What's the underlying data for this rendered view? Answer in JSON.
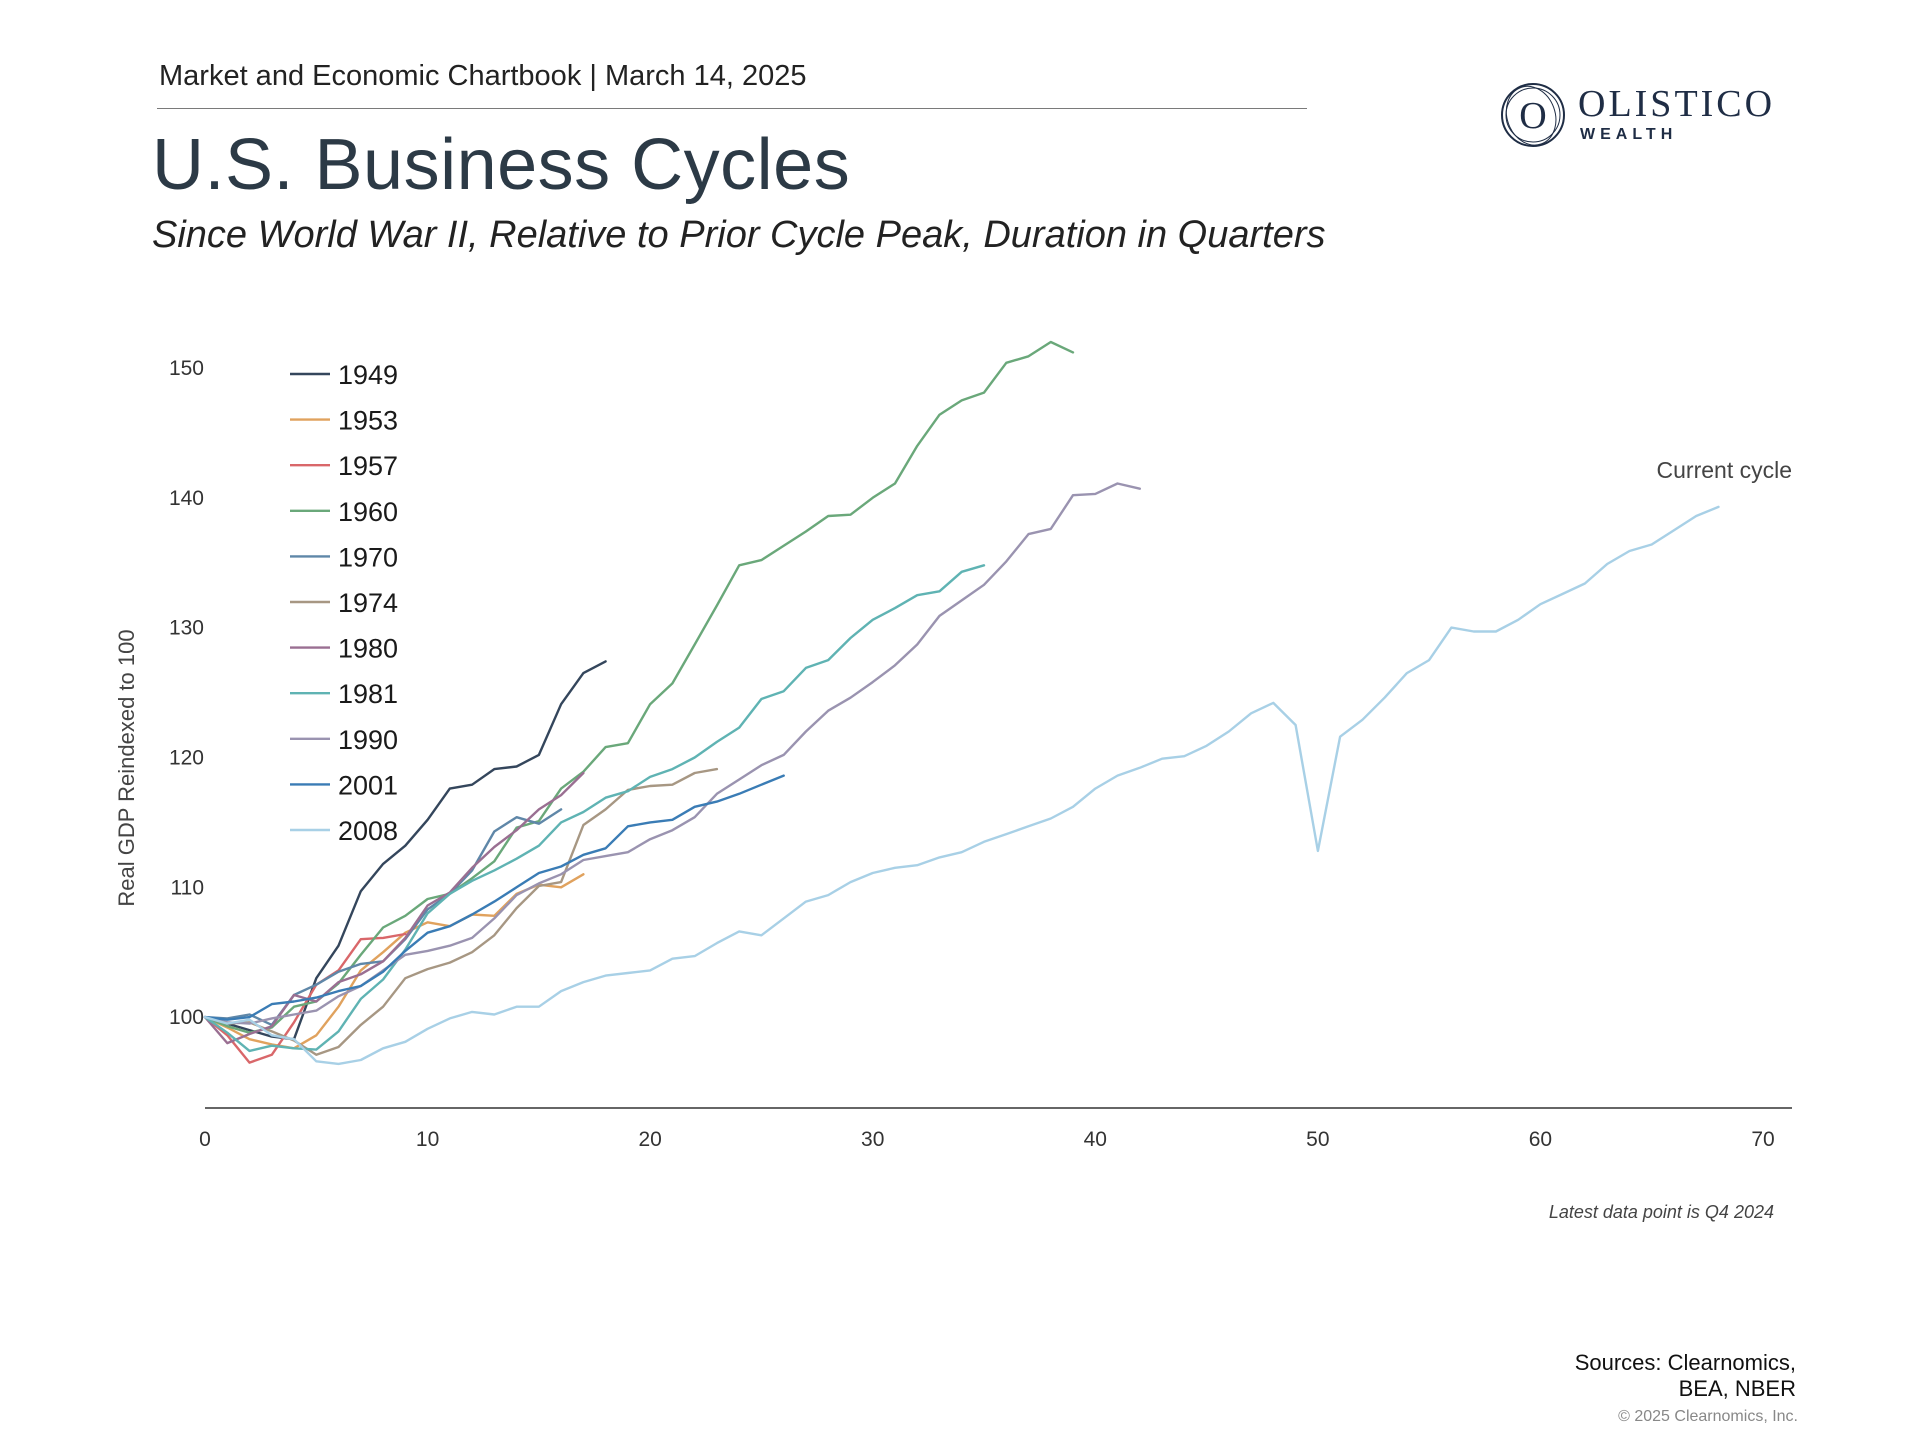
{
  "header": {
    "text": "Market and Economic Chartbook | March 14, 2025",
    "title": "U.S. Business Cycles",
    "subtitle": "Since World War II, Relative to Prior Cycle Peak, Duration in Quarters"
  },
  "logo": {
    "name": "OLISTICO",
    "sub": "WEALTH",
    "mark": "O"
  },
  "footer": {
    "sources_line1": "Sources: Clearnomics,",
    "sources_line2": "BEA, NBER",
    "copyright": "© 2025 Clearnomics, Inc."
  },
  "chart_data": {
    "type": "line",
    "title": "U.S. Business Cycles",
    "xlabel": "",
    "ylabel": "Real GDP Reindexed to 100",
    "xlim": [
      0,
      70
    ],
    "ylim": [
      93,
      153
    ],
    "xticks": [
      0,
      10,
      20,
      30,
      40,
      50,
      60,
      70
    ],
    "yticks": [
      100,
      110,
      120,
      130,
      140,
      150
    ],
    "grid": false,
    "legend_position": "top-left",
    "annotations": {
      "current_cycle": "Current cycle",
      "note": "Latest data point is Q4 2024"
    },
    "series": [
      {
        "name": "1949",
        "color": "#34465c",
        "values": [
          100,
          99.5,
          99.0,
          98.5,
          98.3,
          103.0,
          105.5,
          109.7,
          111.8,
          113.2,
          115.2,
          117.6,
          117.9,
          119.1,
          119.3,
          120.2,
          124.1,
          126.5,
          127.4
        ]
      },
      {
        "name": "1953",
        "color": "#e0a25e",
        "values": [
          100,
          99.2,
          98.3,
          97.9,
          97.6,
          98.6,
          100.8,
          103.6,
          105.0,
          106.5,
          107.3,
          107.0,
          107.9,
          107.8,
          109.5,
          110.2,
          110.0,
          111.0
        ]
      },
      {
        "name": "1957",
        "color": "#d9676a",
        "values": [
          100,
          98.6,
          96.5,
          97.1,
          99.6,
          102.5,
          103.6,
          106.0,
          106.1,
          106.4
        ]
      },
      {
        "name": "1960",
        "color": "#6aa87a",
        "values": [
          100,
          99.3,
          98.8,
          99.2,
          100.8,
          101.2,
          102.6,
          104.8,
          106.9,
          107.8,
          109.1,
          109.5,
          110.7,
          112.0,
          114.6,
          115.1,
          117.6,
          118.9,
          120.8,
          121.1,
          124.1,
          125.7,
          128.7,
          131.7,
          134.8,
          135.2,
          136.3,
          137.4,
          138.6,
          138.7,
          140.0,
          141.1,
          144.0,
          146.4,
          147.5,
          148.1,
          150.4,
          150.9,
          152.0,
          151.2
        ]
      },
      {
        "name": "1970",
        "color": "#5f87a8",
        "values": [
          100,
          99.9,
          100.2,
          99.4,
          101.7,
          102.5,
          103.5,
          104.1,
          104.3,
          106.0,
          108.3,
          109.5,
          111.3,
          114.3,
          115.4,
          114.9,
          116.0
        ]
      },
      {
        "name": "1974",
        "color": "#a79783",
        "values": [
          100,
          99.5,
          99.6,
          98.9,
          98.2,
          97.1,
          97.7,
          99.4,
          100.8,
          103.0,
          103.7,
          104.2,
          105.0,
          106.3,
          108.4,
          110.1,
          110.4,
          114.8,
          116.0,
          117.5,
          117.8,
          117.9,
          118.8,
          119.1
        ]
      },
      {
        "name": "1980",
        "color": "#9a6f92",
        "values": [
          100,
          98.0,
          98.7,
          99.3,
          101.7,
          101.2,
          102.7,
          103.3,
          104.3,
          106.1,
          108.6,
          109.6,
          111.5,
          113.1,
          114.4,
          116.0,
          117.1,
          118.8
        ]
      },
      {
        "name": "1981",
        "color": "#5fb3b3",
        "values": [
          100,
          98.8,
          97.4,
          97.8,
          97.6,
          97.5,
          98.9,
          101.4,
          102.9,
          105.2,
          108.0,
          109.5,
          110.5,
          111.3,
          112.2,
          113.2,
          115.0,
          115.8,
          116.9,
          117.4,
          118.5,
          119.1,
          120.0,
          121.2,
          122.3,
          124.5,
          125.1,
          126.9,
          127.5,
          129.2,
          130.6,
          131.5,
          132.5,
          132.8,
          134.3,
          134.8
        ]
      },
      {
        "name": "1990",
        "color": "#9a93b0",
        "values": [
          100,
          99.6,
          99.5,
          99.9,
          100.2,
          100.5,
          101.6,
          102.4,
          103.6,
          104.8,
          105.1,
          105.5,
          106.1,
          107.6,
          109.4,
          110.3,
          111.0,
          112.1,
          112.4,
          112.7,
          113.7,
          114.4,
          115.4,
          117.2,
          118.3,
          119.4,
          120.2,
          122.0,
          123.6,
          124.6,
          125.8,
          127.1,
          128.7,
          130.9,
          132.1,
          133.3,
          135.1,
          137.2,
          137.6,
          140.2,
          140.3,
          141.1,
          140.7
        ]
      },
      {
        "name": "2001",
        "color": "#3a7cb5",
        "values": [
          100,
          99.8,
          100.0,
          101.0,
          101.2,
          101.5,
          102.0,
          102.4,
          103.5,
          105.1,
          106.5,
          107.0,
          107.9,
          108.9,
          110.0,
          111.1,
          111.6,
          112.5,
          113.0,
          114.7,
          115.0,
          115.2,
          116.2,
          116.6,
          117.2,
          117.9,
          118.6
        ]
      },
      {
        "name": "2008",
        "color": "#a8d0e6",
        "values": [
          100,
          99.5,
          99.8,
          98.6,
          98.3,
          96.6,
          96.4,
          96.7,
          97.6,
          98.1,
          99.1,
          99.9,
          100.4,
          100.2,
          100.8,
          100.8,
          102.0,
          102.7,
          103.2,
          103.4,
          103.6,
          104.5,
          104.7,
          105.7,
          106.6,
          106.3,
          107.6,
          108.9,
          109.4,
          110.4,
          111.1,
          111.5,
          111.7,
          112.3,
          112.7,
          113.5,
          114.1,
          114.7,
          115.3,
          116.2,
          117.6,
          118.6,
          119.2,
          119.9,
          120.1,
          120.9,
          122.0,
          123.4,
          124.2,
          122.5,
          112.8,
          121.6,
          122.9,
          124.6,
          126.5,
          127.5,
          130.0,
          129.7,
          129.7,
          130.6,
          131.8,
          132.6,
          133.4,
          134.9,
          135.9,
          136.4,
          137.5,
          138.6,
          139.3
        ]
      }
    ]
  }
}
